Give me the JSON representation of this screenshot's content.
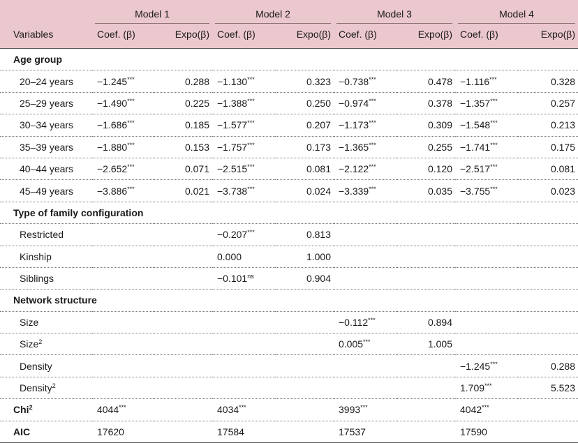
{
  "header": {
    "variables_label": "Variables",
    "models": [
      "Model 1",
      "Model 2",
      "Model 3",
      "Model 4"
    ],
    "coef_label": "Coef. (β)",
    "expo_label": "Expo(β)"
  },
  "sections": {
    "age_group": {
      "title": "Age group",
      "rows": [
        {
          "label": "20–24 years",
          "m1c": "−1.245",
          "m1s": "***",
          "m1e": "0.288",
          "m2c": "−1.130",
          "m2s": "***",
          "m2e": "0.323",
          "m3c": "−0.738",
          "m3s": "***",
          "m3e": "0.478",
          "m4c": "−1.116",
          "m4s": "***",
          "m4e": "0.328"
        },
        {
          "label": "25–29 years",
          "m1c": "−1.490",
          "m1s": "***",
          "m1e": "0.225",
          "m2c": "−1.388",
          "m2s": "***",
          "m2e": "0.250",
          "m3c": "−0.974",
          "m3s": "***",
          "m3e": "0.378",
          "m4c": "−1.357",
          "m4s": "***",
          "m4e": "0.257"
        },
        {
          "label": "30–34 years",
          "m1c": "−1.686",
          "m1s": "***",
          "m1e": "0.185",
          "m2c": "−1.577",
          "m2s": "***",
          "m2e": "0.207",
          "m3c": "−1.173",
          "m3s": "***",
          "m3e": "0.309",
          "m4c": "−1.548",
          "m4s": "***",
          "m4e": "0.213"
        },
        {
          "label": "35–39 years",
          "m1c": "−1.880",
          "m1s": "***",
          "m1e": "0.153",
          "m2c": "−1.757",
          "m2s": "***",
          "m2e": "0.173",
          "m3c": "−1.365",
          "m3s": "***",
          "m3e": "0.255",
          "m4c": "−1.741",
          "m4s": "***",
          "m4e": "0.175"
        },
        {
          "label": "40–44 years",
          "m1c": "−2.652",
          "m1s": "***",
          "m1e": "0.071",
          "m2c": "−2.515",
          "m2s": "***",
          "m2e": "0.081",
          "m3c": "−2.122",
          "m3s": "***",
          "m3e": "0.120",
          "m4c": "−2.517",
          "m4s": "***",
          "m4e": "0.081"
        },
        {
          "label": "45–49 years",
          "m1c": "−3.886",
          "m1s": "***",
          "m1e": "0.021",
          "m2c": "−3.738",
          "m2s": "***",
          "m2e": "0.024",
          "m3c": "−3.339",
          "m3s": "***",
          "m3e": "0.035",
          "m4c": "−3.755",
          "m4s": "***",
          "m4e": "0.023"
        }
      ]
    },
    "family": {
      "title": "Type of family configuration",
      "rows": [
        {
          "label": "Restricted",
          "m2c": "−0.207",
          "m2s": "***",
          "m2e": "0.813"
        },
        {
          "label": "Kinship",
          "m2c": "0.000",
          "m2s": "",
          "m2e": "1.000"
        },
        {
          "label": "Siblings",
          "m2c": "−0.101",
          "m2s": "ns",
          "m2e": "0.904"
        }
      ]
    },
    "network": {
      "title": "Network structure",
      "rows": [
        {
          "label": "Size",
          "m3c": "−0.112",
          "m3s": "***",
          "m3e": "0.894"
        },
        {
          "label": "Size",
          "label_sup": "2",
          "m3c": "0.005",
          "m3s": "***",
          "m3e": "1.005"
        },
        {
          "label": "Density",
          "m4c": "−1.245",
          "m4s": "***",
          "m4e": "0.288"
        },
        {
          "label": "Density",
          "label_sup": "2",
          "m4c": "1.709",
          "m4s": "***",
          "m4e": "5.523"
        }
      ]
    }
  },
  "stats": {
    "chi": {
      "label": "Chi",
      "label_sup": "2",
      "m1": "4044",
      "m2": "4034",
      "m3": "3993",
      "m4": "4042",
      "sig": "***"
    },
    "aic": {
      "label": "AIC",
      "m1": "17620",
      "m2": "17584",
      "m3": "17537",
      "m4": "17590"
    }
  }
}
